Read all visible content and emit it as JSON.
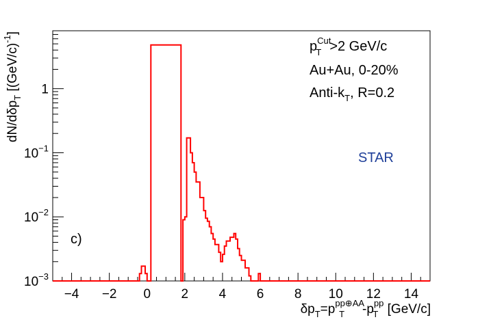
{
  "chart_data": {
    "type": "histogram",
    "panel_label": "c)",
    "xlabel_parts": {
      "main": "δp",
      "sub1": "T",
      "eq": "=p",
      "sup2": "pp⊕AA",
      "sub2": "T",
      "minus": "-p",
      "sup3": "pp",
      "sub3": "T",
      "unit": " [GeV/c]"
    },
    "ylabel_parts": {
      "main": "dN/dδp",
      "sub": "T",
      "unit": " [(GeV/c)",
      "sup": "-1",
      "close": "]"
    },
    "annotations": {
      "line1": {
        "p": "p",
        "sup": "Cut",
        "sub": "T",
        "rest": ">2 GeV/c"
      },
      "line2": "Au+Au, 0-20%",
      "line3": {
        "pre": "Anti-k",
        "sub": "T",
        "rest": ", R=0.2"
      },
      "experiment": "STAR"
    },
    "x_range": [
      -5,
      15
    ],
    "y_range": [
      0.001,
      8
    ],
    "y_scale": "log",
    "x_ticks": [
      -4,
      -2,
      0,
      2,
      4,
      6,
      8,
      10,
      12,
      14
    ],
    "x_tick_labels": [
      "−4",
      "−2",
      "0",
      "2",
      "4",
      "6",
      "8",
      "10",
      "12",
      "14"
    ],
    "y_ticks": [
      {
        "value": 0.001,
        "base": "10",
        "exp": "−3"
      },
      {
        "value": 0.01,
        "base": "10",
        "exp": "−2"
      },
      {
        "value": 0.1,
        "base": "10",
        "exp": "−1"
      },
      {
        "value": 1,
        "base": "1",
        "exp": ""
      }
    ],
    "line_color": "#ff0000",
    "bin_edges": [
      -5,
      -0.4,
      -0.3,
      -0.2,
      -0.1,
      0,
      0.2,
      1.8,
      1.9,
      2.0,
      2.1,
      2.2,
      2.3,
      2.4,
      2.5,
      2.6,
      2.7,
      2.8,
      2.9,
      3.0,
      3.1,
      3.2,
      3.3,
      3.4,
      3.5,
      3.6,
      3.7,
      3.8,
      3.9,
      4.0,
      4.1,
      4.2,
      4.3,
      4.4,
      4.5,
      4.6,
      4.7,
      4.8,
      4.9,
      5.0,
      5.1,
      5.2,
      5.3,
      5.4,
      5.5,
      5.6,
      5.9,
      6.0,
      6.1,
      15
    ],
    "bin_values": [
      0.001,
      0.0013,
      0.0017,
      0.0017,
      0.0013,
      0,
      4.8,
      0.001,
      0.009,
      0.01,
      0.17,
      0.17,
      0.1,
      0.07,
      0.05,
      0.035,
      0.035,
      0.02,
      0.02,
      0.0125,
      0.0095,
      0.0085,
      0.007,
      0.0055,
      0.0045,
      0.0037,
      0.0037,
      0.0028,
      0.002,
      0.0026,
      0.0035,
      0.0042,
      0.0042,
      0.0048,
      0.0048,
      0.0055,
      0.0045,
      0.0032,
      0.0025,
      0.0021,
      0.0021,
      0.0016,
      0.0016,
      0.0012,
      0.001,
      0.001,
      0.0013,
      0.001,
      0.001
    ]
  }
}
